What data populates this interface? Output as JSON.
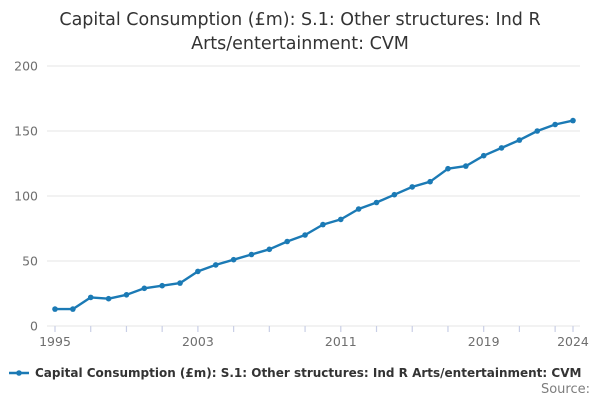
{
  "title": "Capital Consumption (£m): S.1: Other structures: Ind R Arts/entertainment: CVM",
  "legend": {
    "label": "Capital Consumption (£m): S.1: Other structures: Ind R Arts/entertainment: CVM"
  },
  "source_label": "Source:",
  "colors": {
    "line": "#1b7ab5",
    "grid": "#e6e6e6",
    "axis_text": "#6e6e6e",
    "tick_mark": "#c9cfe6",
    "title_text": "#333333",
    "source_text": "#7d7d7d"
  },
  "chart_data": {
    "type": "line",
    "title": "Capital Consumption (£m): S.1: Other structures: Ind R Arts/entertainment: CVM",
    "xlabel": "",
    "ylabel": "",
    "x": [
      1995,
      1996,
      1997,
      1998,
      1999,
      2000,
      2001,
      2002,
      2003,
      2004,
      2005,
      2006,
      2007,
      2008,
      2009,
      2010,
      2011,
      2012,
      2013,
      2014,
      2015,
      2016,
      2017,
      2018,
      2019,
      2020,
      2021,
      2022,
      2023,
      2024
    ],
    "series": [
      {
        "name": "Capital Consumption (£m): S.1: Other structures: Ind R Arts/entertainment: CVM",
        "values": [
          13,
          13,
          22,
          21,
          24,
          29,
          31,
          33,
          42,
          47,
          51,
          55,
          59,
          65,
          70,
          78,
          82,
          90,
          95,
          101,
          107,
          111,
          121,
          123,
          131,
          137,
          143,
          150,
          155,
          158
        ]
      }
    ],
    "ylim": [
      0,
      200
    ],
    "yticks": [
      0,
      50,
      100,
      150,
      200
    ],
    "xticks": [
      1995,
      1997,
      1999,
      2001,
      2003,
      2005,
      2007,
      2009,
      2011,
      2013,
      2015,
      2017,
      2019,
      2021,
      2023,
      2024
    ],
    "xtick_labels": [
      "1995",
      "2003",
      "2011",
      "2019",
      "2024"
    ],
    "xtick_label_years": [
      1995,
      2003,
      2011,
      2019,
      2024
    ],
    "grid": true,
    "marker": "dot",
    "legend_position": "bottom-left"
  }
}
